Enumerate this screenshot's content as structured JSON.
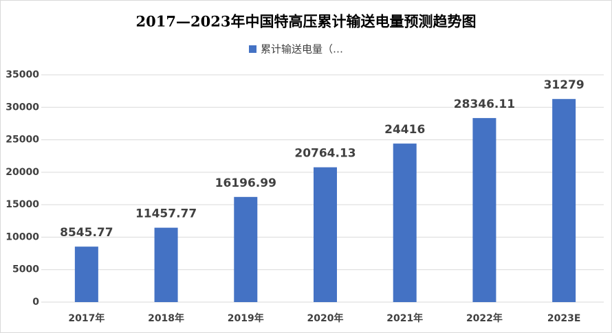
{
  "chart_data": {
    "type": "bar",
    "title": "2017—2023年中国特高压累计输送电量预测趋势图",
    "categories": [
      "2017年",
      "2018年",
      "2019年",
      "2020年",
      "2021年",
      "2022年",
      "2023E"
    ],
    "series": [
      {
        "name": "累计输送电量（…",
        "color": "#4472c4",
        "values": [
          8545.77,
          11457.77,
          16196.99,
          20764.13,
          24416,
          28346.11,
          31279
        ]
      }
    ],
    "ylim": [
      0,
      35000
    ],
    "yticks": [
      0,
      5000,
      10000,
      15000,
      20000,
      25000,
      30000,
      35000
    ],
    "grid": true,
    "legend": "top"
  }
}
